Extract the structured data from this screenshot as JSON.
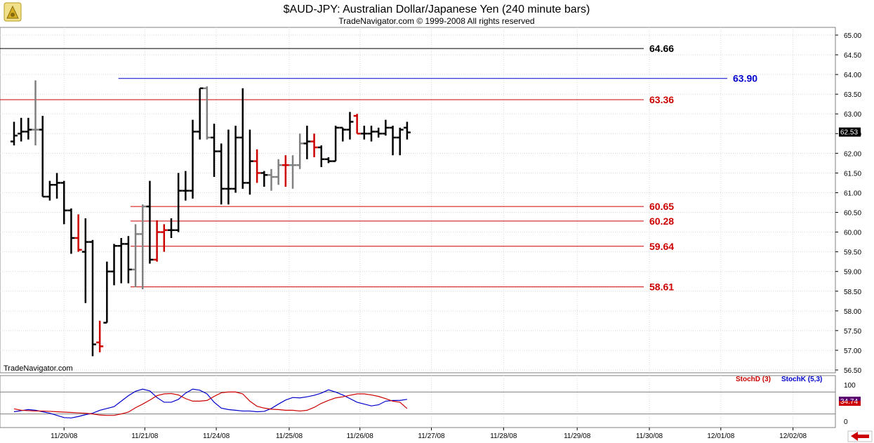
{
  "chart_data": {
    "type": "ohlc",
    "title": "$AUD-JPY:  Australian Dollar/Japanese Yen  (240 minute bars)",
    "subtitle": "TradeNavigator.com © 1999-2008 All rights reserved",
    "watermark": "TradeNavigator.com",
    "ylim": [
      56.36,
      65.39
    ],
    "y_ticks": [
      "65.00",
      "64.50",
      "64.00",
      "63.50",
      "63.00",
      "62.50",
      "62.00",
      "61.50",
      "61.00",
      "60.50",
      "60.00",
      "59.50",
      "59.00",
      "58.50",
      "58.00",
      "57.50",
      "57.00",
      "56.50"
    ],
    "x_ticks": [
      "11/20/08",
      "11/21/08",
      "11/24/08",
      "11/25/08",
      "11/26/08",
      "11/27/08",
      "11/28/08",
      "11/29/08",
      "11/30/08",
      "12/01/08",
      "12/02/08"
    ],
    "x_tick_index": [
      7,
      18.3,
      28.3,
      38.5,
      48.4,
      58.4,
      68.5,
      78.8,
      88.9,
      98.9,
      109
    ],
    "last_price_label": "62.53",
    "levels": [
      {
        "label": "64.66",
        "value": 64.66,
        "color": "#000000",
        "start": -1
      },
      {
        "label": "63.90",
        "value": 63.9,
        "color": "#0000cc",
        "start": 14.6
      },
      {
        "label": "63.36",
        "value": 63.36,
        "color": "#cc0000",
        "start": -1
      },
      {
        "label": "60.65",
        "value": 60.65,
        "color": "#cc0000",
        "start": 16.3
      },
      {
        "label": "60.28",
        "value": 60.28,
        "color": "#cc0000",
        "start": 16.3
      },
      {
        "label": "59.64",
        "value": 59.64,
        "color": "#cc0000",
        "start": 16.3
      },
      {
        "label": "58.61",
        "value": 58.61,
        "color": "#cc0000",
        "start": 16.3
      }
    ],
    "bars": [
      {
        "o": 62.3,
        "h": 62.8,
        "l": 62.2,
        "c": 62.45,
        "col": "#000000"
      },
      {
        "o": 62.5,
        "h": 62.9,
        "l": 62.3,
        "c": 62.55,
        "col": "#000000"
      },
      {
        "o": 62.55,
        "h": 62.9,
        "l": 62.35,
        "c": 62.6,
        "col": "#000000"
      },
      {
        "o": 62.6,
        "h": 63.85,
        "l": 62.2,
        "c": 62.6,
        "col": "#808080"
      },
      {
        "o": 62.6,
        "h": 62.95,
        "l": 60.9,
        "c": 60.9,
        "col": "#000000"
      },
      {
        "o": 60.9,
        "h": 61.3,
        "l": 60.8,
        "c": 61.2,
        "col": "#000000"
      },
      {
        "o": 61.2,
        "h": 61.5,
        "l": 60.85,
        "c": 61.25,
        "col": "#000000"
      },
      {
        "o": 61.25,
        "h": 61.3,
        "l": 60.2,
        "c": 60.55,
        "col": "#000000"
      },
      {
        "o": 60.55,
        "h": 60.6,
        "l": 59.45,
        "c": 59.85,
        "col": "#000000"
      },
      {
        "o": 59.85,
        "h": 60.45,
        "l": 59.5,
        "c": 59.55,
        "col": "#cc0000"
      },
      {
        "o": 59.5,
        "h": 60.35,
        "l": 58.2,
        "c": 59.75,
        "col": "#000000"
      },
      {
        "o": 59.75,
        "h": 59.8,
        "l": 56.85,
        "c": 57.15,
        "col": "#000000"
      },
      {
        "o": 57.2,
        "h": 57.75,
        "l": 56.95,
        "c": 57.1,
        "col": "#cc0000"
      },
      {
        "o": 57.7,
        "h": 59.25,
        "l": 57.7,
        "c": 59.0,
        "col": "#000000"
      },
      {
        "o": 59.0,
        "h": 59.7,
        "l": 58.65,
        "c": 59.65,
        "col": "#000000"
      },
      {
        "o": 59.65,
        "h": 59.85,
        "l": 58.7,
        "c": 59.7,
        "col": "#000000"
      },
      {
        "o": 59.7,
        "h": 59.9,
        "l": 58.7,
        "c": 59.05,
        "col": "#000000"
      },
      {
        "o": 59.05,
        "h": 60.2,
        "l": 58.6,
        "c": 59.95,
        "col": "#808080"
      },
      {
        "o": 59.95,
        "h": 60.7,
        "l": 58.55,
        "c": 60.65,
        "col": "#808080"
      },
      {
        "o": 60.65,
        "h": 61.3,
        "l": 59.2,
        "c": 59.3,
        "col": "#000000"
      },
      {
        "o": 59.3,
        "h": 60.3,
        "l": 59.25,
        "c": 60.0,
        "col": "#cc0000"
      },
      {
        "o": 60.0,
        "h": 60.2,
        "l": 59.5,
        "c": 60.05,
        "col": "#cc0000"
      },
      {
        "o": 60.05,
        "h": 60.35,
        "l": 59.85,
        "c": 60.05,
        "col": "#000000"
      },
      {
        "o": 60.05,
        "h": 61.5,
        "l": 60.0,
        "c": 61.05,
        "col": "#000000"
      },
      {
        "o": 61.05,
        "h": 61.55,
        "l": 60.8,
        "c": 61.05,
        "col": "#000000"
      },
      {
        "o": 61.05,
        "h": 62.85,
        "l": 60.85,
        "c": 62.55,
        "col": "#000000"
      },
      {
        "o": 62.55,
        "h": 63.65,
        "l": 62.35,
        "c": 63.65,
        "col": "#000000"
      },
      {
        "o": 63.65,
        "h": 63.7,
        "l": 62.35,
        "c": 62.4,
        "col": "#808080"
      },
      {
        "o": 62.4,
        "h": 62.75,
        "l": 61.4,
        "c": 62.05,
        "col": "#000000"
      },
      {
        "o": 62.05,
        "h": 62.25,
        "l": 60.7,
        "c": 61.1,
        "col": "#000000"
      },
      {
        "o": 61.1,
        "h": 62.6,
        "l": 60.7,
        "c": 61.1,
        "col": "#000000"
      },
      {
        "o": 61.1,
        "h": 62.7,
        "l": 61.0,
        "c": 62.4,
        "col": "#000000"
      },
      {
        "o": 62.4,
        "h": 63.65,
        "l": 61.1,
        "c": 61.25,
        "col": "#000000"
      },
      {
        "o": 61.25,
        "h": 62.6,
        "l": 60.95,
        "c": 61.8,
        "col": "#000000"
      },
      {
        "o": 61.8,
        "h": 62.1,
        "l": 61.25,
        "c": 61.5,
        "col": "#cc0000"
      },
      {
        "o": 61.5,
        "h": 61.55,
        "l": 61.15,
        "c": 61.45,
        "col": "#000000"
      },
      {
        "o": 61.45,
        "h": 61.6,
        "l": 61.05,
        "c": 61.4,
        "col": "#808080"
      },
      {
        "o": 61.4,
        "h": 61.85,
        "l": 61.2,
        "c": 61.7,
        "col": "#808080"
      },
      {
        "o": 61.7,
        "h": 61.95,
        "l": 61.15,
        "c": 61.7,
        "col": "#cc0000"
      },
      {
        "o": 61.7,
        "h": 61.95,
        "l": 61.1,
        "c": 61.7,
        "col": "#808080"
      },
      {
        "o": 61.7,
        "h": 62.5,
        "l": 61.6,
        "c": 62.25,
        "col": "#808080"
      },
      {
        "o": 62.25,
        "h": 62.7,
        "l": 61.85,
        "c": 62.3,
        "col": "#000000"
      },
      {
        "o": 62.3,
        "h": 62.5,
        "l": 61.9,
        "c": 62.15,
        "col": "#cc0000"
      },
      {
        "o": 62.15,
        "h": 62.2,
        "l": 61.65,
        "c": 61.85,
        "col": "#000000"
      },
      {
        "o": 61.85,
        "h": 61.9,
        "l": 61.75,
        "c": 61.8,
        "col": "#000000"
      },
      {
        "o": 61.8,
        "h": 62.7,
        "l": 61.8,
        "c": 62.65,
        "col": "#000000"
      },
      {
        "o": 62.65,
        "h": 62.65,
        "l": 62.3,
        "c": 62.6,
        "col": "#000000"
      },
      {
        "o": 62.6,
        "h": 63.05,
        "l": 62.35,
        "c": 62.8,
        "col": "#000000"
      },
      {
        "o": 62.95,
        "h": 63.0,
        "l": 62.5,
        "c": 62.5,
        "col": "#cc0000"
      },
      {
        "o": 62.5,
        "h": 62.7,
        "l": 62.35,
        "c": 62.5,
        "col": "#000000"
      },
      {
        "o": 62.5,
        "h": 62.7,
        "l": 62.3,
        "c": 62.55,
        "col": "#000000"
      },
      {
        "o": 62.55,
        "h": 62.65,
        "l": 62.4,
        "c": 62.5,
        "col": "#000000"
      },
      {
        "o": 62.5,
        "h": 62.85,
        "l": 62.45,
        "c": 62.65,
        "col": "#000000"
      },
      {
        "o": 62.65,
        "h": 62.7,
        "l": 61.95,
        "c": 62.4,
        "col": "#000000"
      },
      {
        "o": 62.4,
        "h": 62.65,
        "l": 61.95,
        "c": 62.6,
        "col": "#000000"
      },
      {
        "o": 62.65,
        "h": 62.8,
        "l": 62.35,
        "c": 62.53,
        "col": "#000000"
      }
    ],
    "oscillator": {
      "ylim": [
        0,
        100
      ],
      "y_ticks": [
        "100",
        "0"
      ],
      "ref_lines": [
        80,
        20
      ],
      "last_label": "34.74",
      "legend": [
        {
          "label": "StochD (3)",
          "color": "#cc0000"
        },
        {
          "label": "StochK (5,3)",
          "color": "#0000cc"
        }
      ],
      "stochD": [
        34,
        30,
        29,
        28,
        28,
        27,
        26,
        25,
        24,
        23,
        22,
        20,
        17,
        16,
        16,
        20,
        25,
        37,
        47,
        58,
        70,
        75,
        76,
        72,
        62,
        55,
        55,
        57,
        68,
        78,
        80,
        80,
        75,
        55,
        41,
        36,
        33,
        32,
        30,
        30,
        28,
        30,
        38,
        49,
        57,
        64,
        67,
        71,
        75,
        75,
        72,
        68,
        62,
        55,
        52,
        34.74
      ],
      "stochK": [
        26,
        29,
        32,
        30,
        26,
        22,
        16,
        10,
        9,
        13,
        18,
        22,
        30,
        35,
        40,
        55,
        70,
        82,
        88,
        83,
        65,
        52,
        52,
        60,
        77,
        88,
        85,
        75,
        52,
        36,
        32,
        30,
        28,
        28,
        26,
        27,
        35,
        47,
        58,
        65,
        64,
        67,
        71,
        77,
        86,
        80,
        72,
        62,
        52,
        47,
        42,
        45,
        55,
        57,
        57,
        60
      ]
    }
  }
}
